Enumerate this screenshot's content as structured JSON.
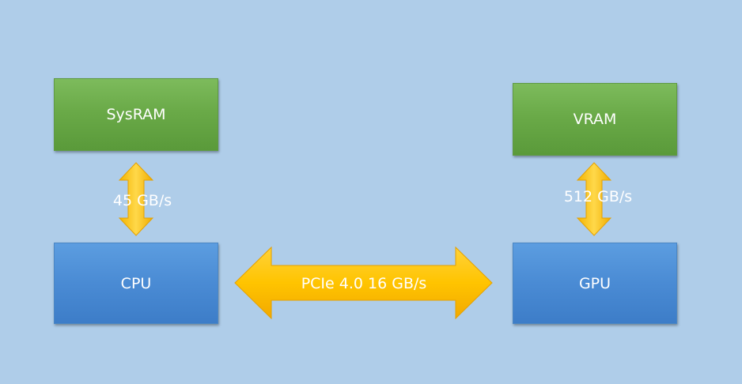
{
  "nodes": {
    "sysram": "SysRAM",
    "vram": "VRAM",
    "cpu": "CPU",
    "gpu": "GPU"
  },
  "links": {
    "sysram_cpu": "45 GB/s",
    "vram_gpu": "512 GB/s",
    "cpu_gpu": "PCIe 4.0 16 GB/s"
  },
  "colors": {
    "background": "#afcde9",
    "memory_box": "#6aaa48",
    "processor_box": "#4a8bd4",
    "arrow": "#ffc000",
    "text": "#ffffff"
  }
}
